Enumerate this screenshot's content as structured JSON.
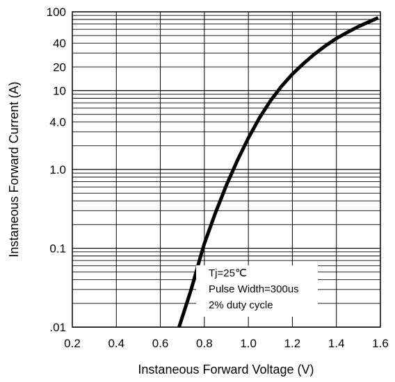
{
  "chart_data": {
    "type": "line",
    "title": "",
    "xlabel": "Instaneous Forward Voltage (V)",
    "ylabel": "Instaneous Forward Current (A)",
    "x_scale": "linear",
    "y_scale": "log",
    "xlim": [
      0.2,
      1.6
    ],
    "ylim": [
      0.01,
      100
    ],
    "x_ticks": [
      "0.2",
      "0.4",
      "0.6",
      "0.8",
      "1.0",
      "1.2",
      "1.4",
      "1.6"
    ],
    "x_tick_values": [
      0.2,
      0.4,
      0.6,
      0.8,
      1.0,
      1.2,
      1.4,
      1.6
    ],
    "y_ticks": [
      ".01",
      "0.1",
      "1.0",
      "4.0",
      "10",
      "20",
      "40",
      "100"
    ],
    "y_tick_values": [
      0.01,
      0.1,
      1,
      4,
      10,
      20,
      40,
      100
    ],
    "grid": true,
    "series": [
      {
        "x": [
          0.685,
          0.7,
          0.72,
          0.74,
          0.76,
          0.78,
          0.8,
          0.85,
          0.9,
          0.95,
          1.0,
          1.05,
          1.1,
          1.15,
          1.2,
          1.25,
          1.3,
          1.35,
          1.4,
          1.45,
          1.5,
          1.55,
          1.59
        ],
        "y": [
          0.01,
          0.0135,
          0.02,
          0.03,
          0.047,
          0.074,
          0.115,
          0.28,
          0.63,
          1.3,
          2.5,
          4.5,
          7.4,
          11.3,
          16.2,
          22,
          29,
          37,
          46,
          55,
          65,
          75,
          84
        ],
        "color": "#000000"
      }
    ],
    "annotations": [
      "Tj=25℃",
      "Pulse Width=300us",
      "2% duty cycle"
    ]
  }
}
